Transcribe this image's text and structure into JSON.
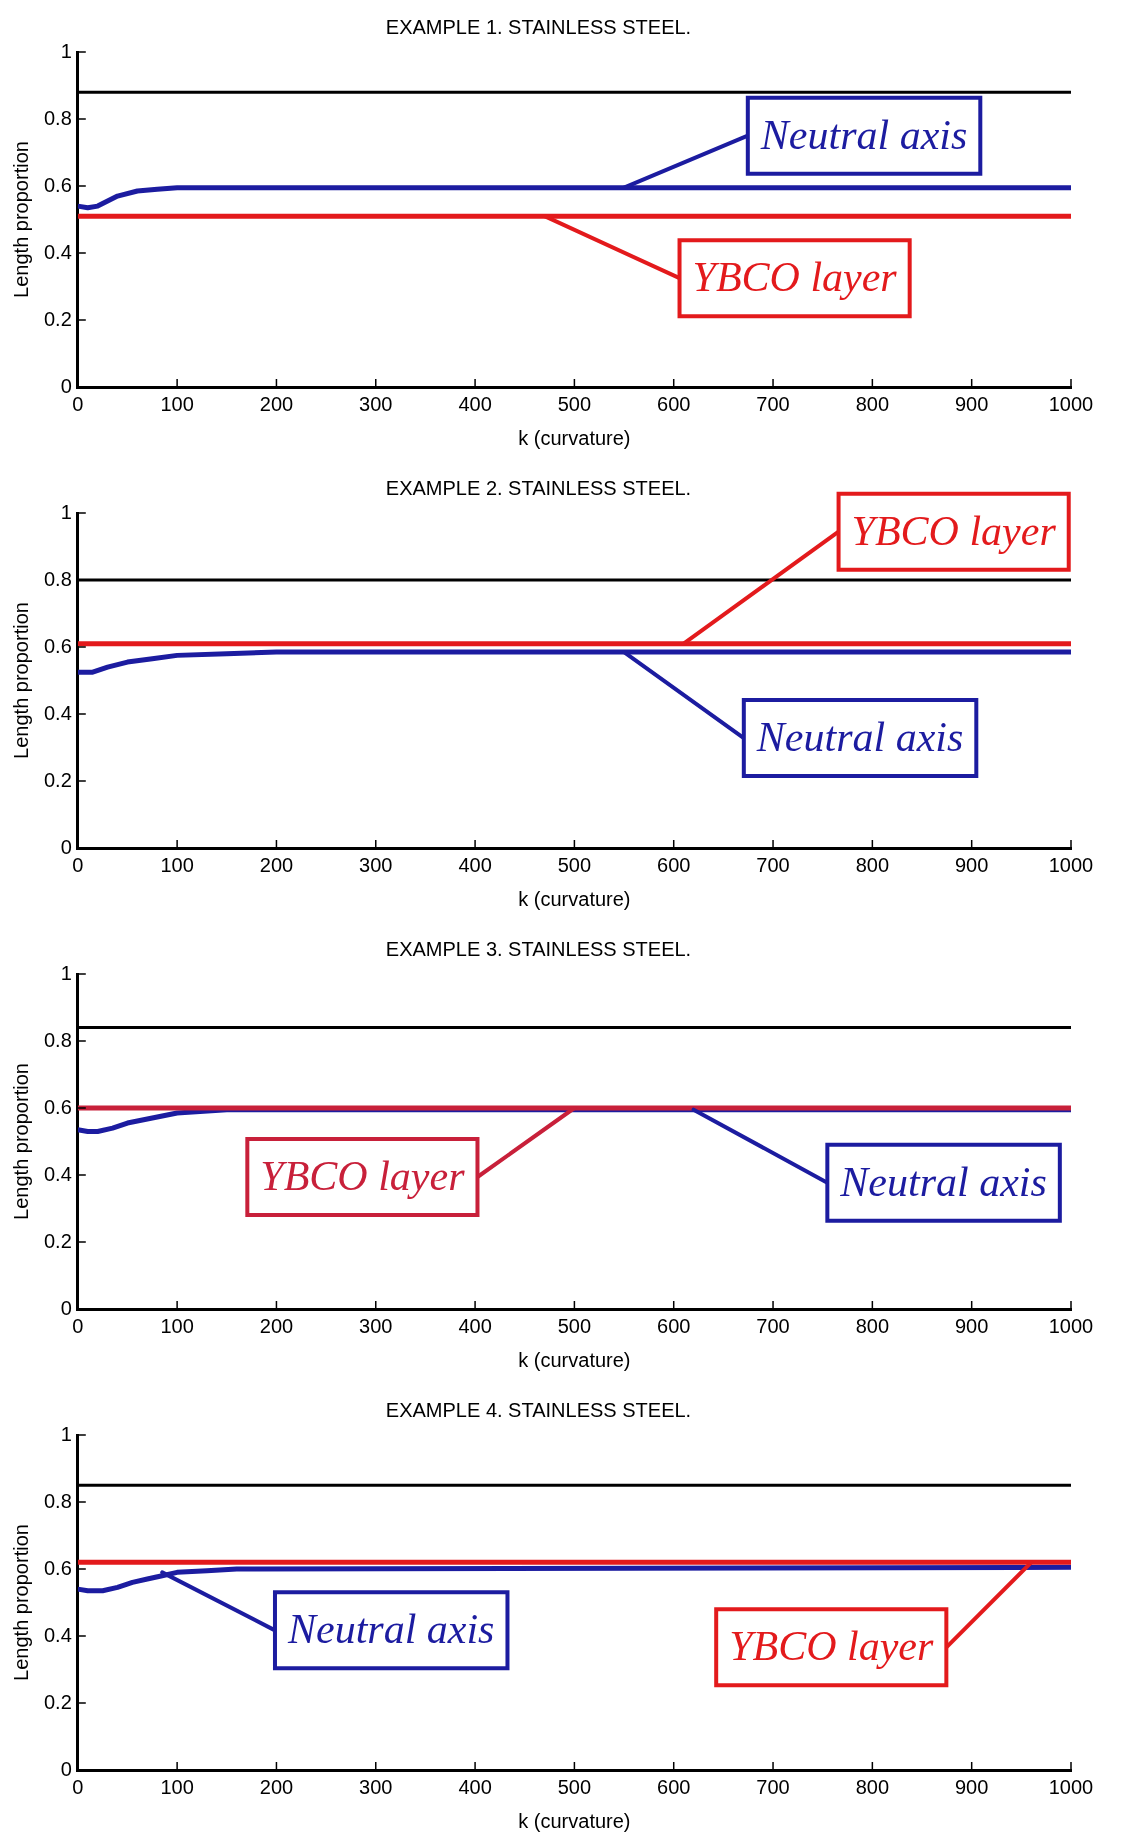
{
  "chart_data": [
    {
      "type": "line",
      "title": "EXAMPLE 1. STAINLESS STEEL.",
      "xlabel": "k (curvature)",
      "ylabel": "Length proportion",
      "xlim": [
        0,
        1000
      ],
      "ylim": [
        0,
        1
      ],
      "xticks": [
        0,
        100,
        200,
        300,
        400,
        500,
        600,
        700,
        800,
        900,
        1000
      ],
      "yticks": [
        0,
        0.2,
        0.4,
        0.6,
        0.8,
        1
      ],
      "grid": false,
      "legend": false,
      "marker": "none",
      "line_style": "solid",
      "series": [
        {
          "color": "#000000",
          "x": [
            0,
            1000
          ],
          "values": [
            0.88,
            0.88
          ]
        },
        {
          "color": "#e31a1c",
          "x": [
            0,
            1000
          ],
          "values": [
            0.51,
            0.51
          ]
        },
        {
          "color": "#1c1ca0",
          "x": [
            0,
            10,
            20,
            30,
            40,
            60,
            80,
            100,
            1000
          ],
          "values": [
            0.54,
            0.535,
            0.54,
            0.555,
            0.57,
            0.585,
            0.59,
            0.595,
            0.595
          ]
        }
      ],
      "annotations": [
        {
          "text": "Neutral axis",
          "x": 550,
          "y": 0.595
        },
        {
          "text": "YBCO layer",
          "x": 470,
          "y": 0.51
        }
      ]
    },
    {
      "type": "line",
      "title": "EXAMPLE 2. STAINLESS STEEL.",
      "xlabel": "k (curvature)",
      "ylabel": "Length proportion",
      "xlim": [
        0,
        1000
      ],
      "ylim": [
        0,
        1
      ],
      "xticks": [
        0,
        100,
        200,
        300,
        400,
        500,
        600,
        700,
        800,
        900,
        1000
      ],
      "yticks": [
        0,
        0.2,
        0.4,
        0.6,
        0.8,
        1
      ],
      "grid": false,
      "legend": false,
      "marker": "none",
      "line_style": "solid",
      "series": [
        {
          "color": "#000000",
          "x": [
            0,
            1000
          ],
          "values": [
            0.8,
            0.8
          ]
        },
        {
          "color": "#e31a1c",
          "x": [
            0,
            1000
          ],
          "values": [
            0.61,
            0.61
          ]
        },
        {
          "color": "#1c1ca0",
          "x": [
            0,
            15,
            30,
            50,
            75,
            100,
            150,
            200,
            1000
          ],
          "values": [
            0.525,
            0.525,
            0.54,
            0.555,
            0.565,
            0.575,
            0.58,
            0.585,
            0.585
          ]
        }
      ],
      "annotations": [
        {
          "text": "YBCO layer",
          "x": 610,
          "y": 0.61
        },
        {
          "text": "Neutral axis",
          "x": 550,
          "y": 0.585
        }
      ]
    },
    {
      "type": "line",
      "title": "EXAMPLE 3. STAINLESS STEEL.",
      "xlabel": "k (curvature)",
      "ylabel": "Length proportion",
      "xlim": [
        0,
        1000
      ],
      "ylim": [
        0,
        1
      ],
      "xticks": [
        0,
        100,
        200,
        300,
        400,
        500,
        600,
        700,
        800,
        900,
        1000
      ],
      "yticks": [
        0,
        0.2,
        0.4,
        0.6,
        0.8,
        1
      ],
      "grid": false,
      "legend": false,
      "marker": "none",
      "line_style": "solid",
      "series": [
        {
          "color": "#000000",
          "x": [
            0,
            1000
          ],
          "values": [
            0.84,
            0.84
          ]
        },
        {
          "color": "#c8203a",
          "x": [
            0,
            1000
          ],
          "values": [
            0.6,
            0.6
          ]
        },
        {
          "color": "#1c1ca0",
          "x": [
            0,
            10,
            20,
            35,
            50,
            75,
            100,
            150,
            1000
          ],
          "values": [
            0.535,
            0.53,
            0.53,
            0.54,
            0.555,
            0.57,
            0.585,
            0.595,
            0.595
          ]
        }
      ],
      "annotations": [
        {
          "text": "YBCO layer",
          "x": 500,
          "y": 0.6
        },
        {
          "text": "Neutral axis",
          "x": 620,
          "y": 0.595
        }
      ]
    },
    {
      "type": "line",
      "title": "EXAMPLE 4. STAINLESS STEEL.",
      "xlabel": "k (curvature)",
      "ylabel": "Length proportion",
      "xlim": [
        0,
        1000
      ],
      "ylim": [
        0,
        1
      ],
      "xticks": [
        0,
        100,
        200,
        300,
        400,
        500,
        600,
        700,
        800,
        900,
        1000
      ],
      "yticks": [
        0,
        0.2,
        0.4,
        0.6,
        0.8,
        1
      ],
      "grid": false,
      "legend": false,
      "marker": "none",
      "line_style": "solid",
      "series": [
        {
          "color": "#000000",
          "x": [
            0,
            1000
          ],
          "values": [
            0.85,
            0.85
          ]
        },
        {
          "color": "#e31a1c",
          "x": [
            0,
            1000
          ],
          "values": [
            0.62,
            0.62
          ]
        },
        {
          "color": "#1c1ca0",
          "x": [
            0,
            10,
            25,
            40,
            55,
            70,
            85,
            100,
            130,
            160,
            1000
          ],
          "values": [
            0.54,
            0.535,
            0.535,
            0.545,
            0.56,
            0.57,
            0.58,
            0.59,
            0.595,
            0.6,
            0.605
          ]
        }
      ],
      "annotations": [
        {
          "text": "Neutral axis",
          "x": 85,
          "y": 0.59
        },
        {
          "text": "YBCO layer",
          "x": 960,
          "y": 0.62
        }
      ]
    }
  ]
}
